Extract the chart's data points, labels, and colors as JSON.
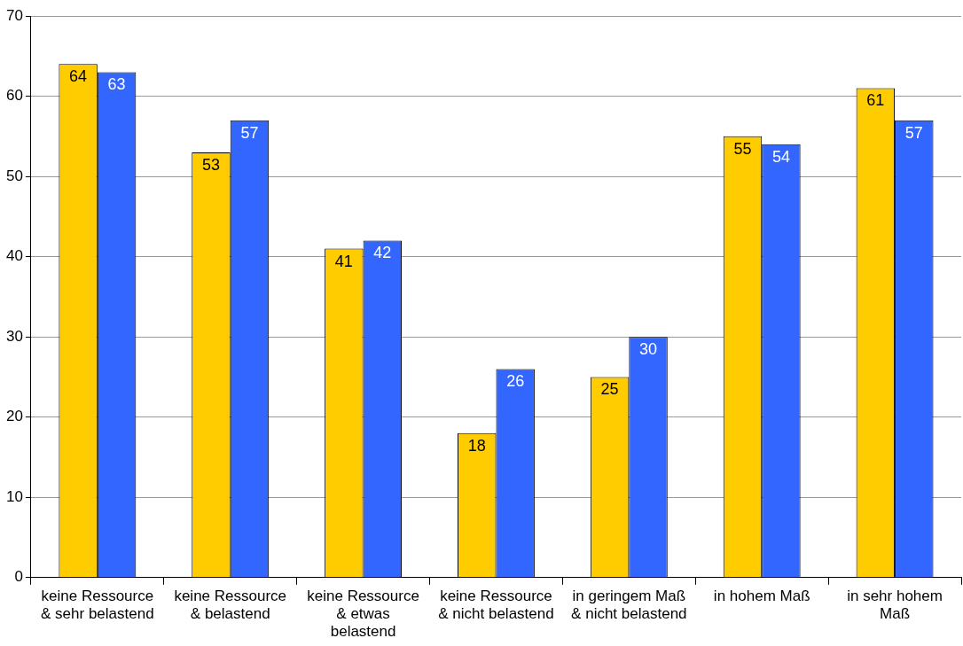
{
  "chart_data": {
    "type": "bar",
    "categories": [
      "keine Ressource & sehr belastend",
      "keine Ressource & belastend",
      "keine Ressource & etwas belastend",
      "keine Ressource & nicht belastend",
      "in geringem Maß & nicht belastend",
      "in hohem Maß",
      "in sehr hohem Maß"
    ],
    "series": [
      {
        "color": "#ffcc00",
        "values": [
          64,
          53,
          41,
          18,
          25,
          55,
          61
        ]
      },
      {
        "color": "#3366ff",
        "values": [
          63,
          57,
          42,
          26,
          30,
          54,
          57
        ]
      }
    ],
    "ylim": [
      0,
      70
    ],
    "yticks": [
      0,
      10,
      20,
      30,
      40,
      50,
      60,
      70
    ],
    "grid": "y",
    "data_labels": true,
    "legend": false
  }
}
